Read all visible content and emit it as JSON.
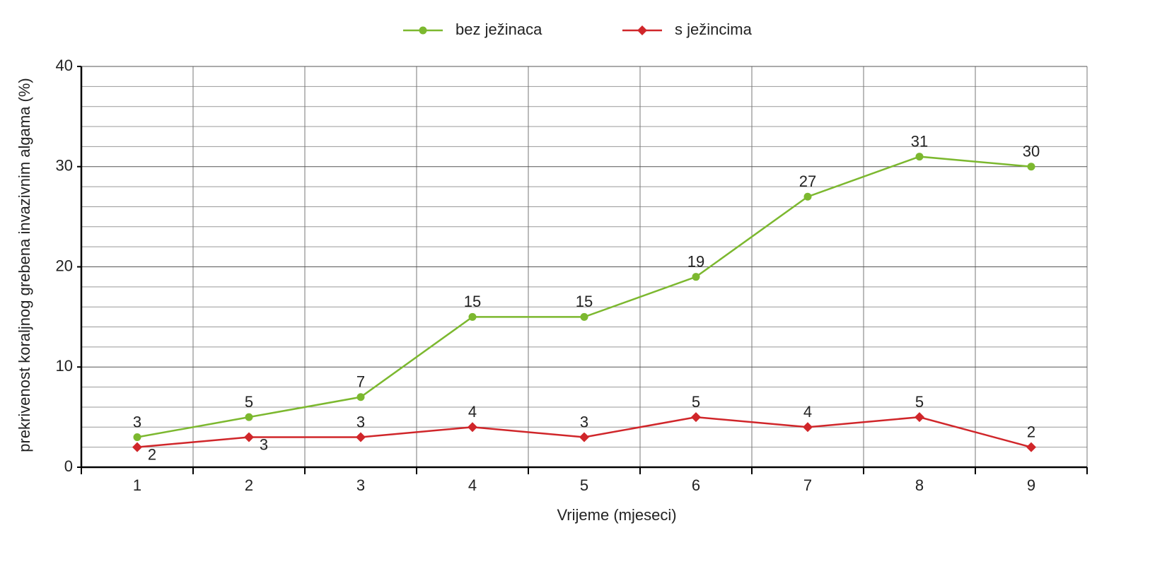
{
  "chart_data": {
    "type": "line",
    "x_label": "Vrijeme (mjeseci)",
    "y_label": "prekrivenost koraljnog grebena invazivnim algama (%)",
    "categories": [
      "1",
      "2",
      "3",
      "4",
      "5",
      "6",
      "7",
      "8",
      "9"
    ],
    "series": [
      {
        "name": "bez ježinaca",
        "color": "#7cb82f",
        "marker": "circle",
        "values": [
          3,
          5,
          7,
          15,
          15,
          19,
          27,
          31,
          30
        ]
      },
      {
        "name": "s ježincima",
        "color": "#d0262a",
        "marker": "diamond",
        "values": [
          2,
          3,
          3,
          4,
          3,
          5,
          4,
          5,
          2
        ]
      }
    ],
    "ylim": [
      0,
      40
    ],
    "yticks": [
      0,
      10,
      20,
      30,
      40
    ],
    "grid": true,
    "legend": "top"
  }
}
